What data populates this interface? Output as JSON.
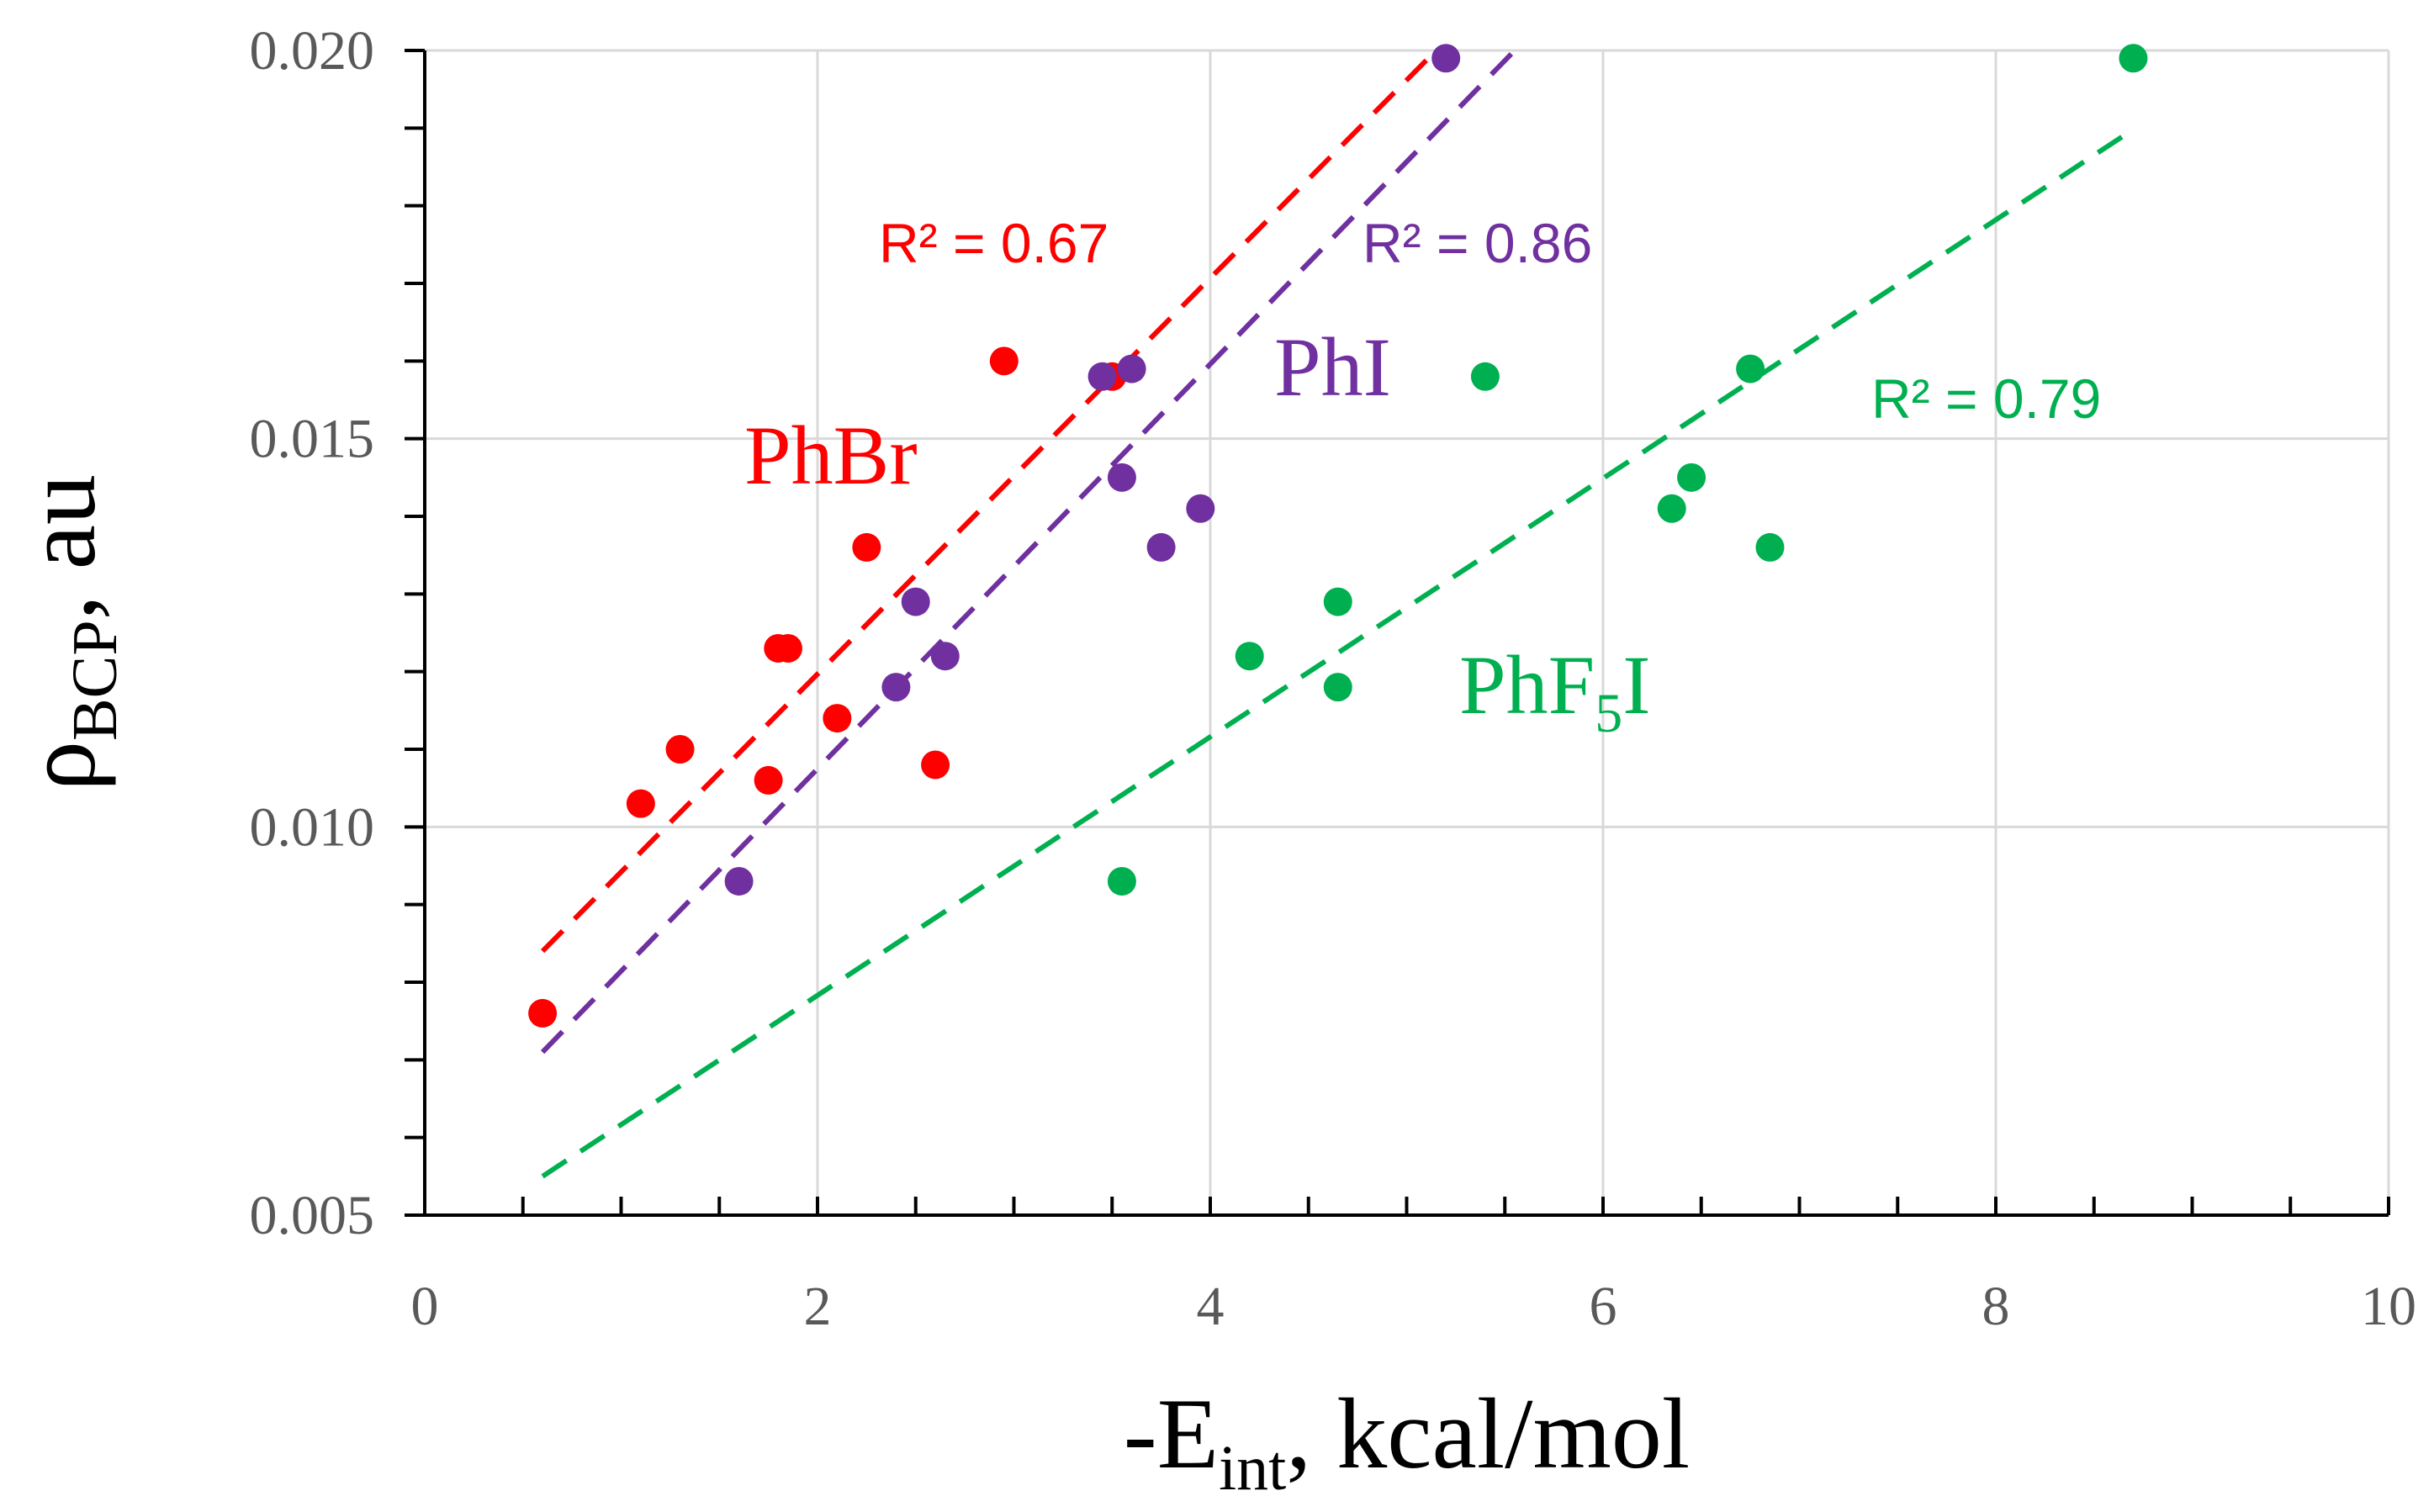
{
  "chart_data": {
    "type": "scatter",
    "title": "",
    "xlabel": {
      "main": "-E",
      "sub": "int",
      "rest": ", kcal/mol"
    },
    "ylabel": {
      "main": "ρ",
      "sub": "BCP",
      "rest": ", au"
    },
    "xlim": [
      0,
      10
    ],
    "ylim": [
      0.005,
      0.02
    ],
    "xticks": [
      0,
      2,
      4,
      6,
      8,
      10
    ],
    "xtick_labels": [
      "0",
      "2",
      "4",
      "6",
      "8",
      "10"
    ],
    "yticks": [
      0.005,
      0.01,
      0.015,
      0.02
    ],
    "ytick_labels": [
      "0.005",
      "0.010",
      "0.015",
      "0.020"
    ],
    "grid": true,
    "series": [
      {
        "key": "phbr",
        "name": "PhBr",
        "label": {
          "main": "PhBr",
          "sub": "",
          "rest": ""
        },
        "color": "#ff0000",
        "points": [
          [
            0.6,
            0.0076
          ],
          [
            1.1,
            0.0103
          ],
          [
            1.3,
            0.011
          ],
          [
            1.75,
            0.0106
          ],
          [
            1.8,
            0.0123
          ],
          [
            1.85,
            0.0123
          ],
          [
            2.1,
            0.0114
          ],
          [
            2.25,
            0.0136
          ],
          [
            2.6,
            0.0108
          ],
          [
            2.95,
            0.016
          ],
          [
            3.5,
            0.0158
          ]
        ],
        "trend": {
          "x": [
            0.6,
            5.15
          ],
          "y": [
            0.0084,
            0.02
          ]
        },
        "r2": "R² = 0.67"
      },
      {
        "key": "phi",
        "name": "PhI",
        "label": {
          "main": "PhI",
          "sub": "",
          "rest": ""
        },
        "color": "#7030a0",
        "points": [
          [
            1.6,
            0.0093
          ],
          [
            2.4,
            0.0118
          ],
          [
            2.5,
            0.0129
          ],
          [
            2.65,
            0.0122
          ],
          [
            3.45,
            0.0158
          ],
          [
            3.55,
            0.0145
          ],
          [
            3.6,
            0.0159
          ],
          [
            3.75,
            0.0136
          ],
          [
            3.95,
            0.0141
          ],
          [
            5.2,
            0.0199
          ]
        ],
        "trend": {
          "x": [
            0.6,
            5.55
          ],
          "y": [
            0.0071,
            0.02
          ]
        },
        "r2": "R² = 0.86"
      },
      {
        "key": "phf5i",
        "name": "PhF5I",
        "label": {
          "main": "PhF",
          "sub": "5",
          "rest": "I"
        },
        "color": "#00b050",
        "points": [
          [
            3.55,
            0.0093
          ],
          [
            4.2,
            0.0122
          ],
          [
            4.65,
            0.0118
          ],
          [
            4.65,
            0.0129
          ],
          [
            5.4,
            0.0158
          ],
          [
            6.35,
            0.0141
          ],
          [
            6.45,
            0.0145
          ],
          [
            6.75,
            0.0159
          ],
          [
            6.85,
            0.0136
          ],
          [
            8.7,
            0.0199
          ]
        ],
        "trend": {
          "x": [
            0.6,
            8.65
          ],
          "y": [
            0.0055,
            0.0189
          ]
        },
        "r2": "R² = 0.79"
      }
    ]
  }
}
